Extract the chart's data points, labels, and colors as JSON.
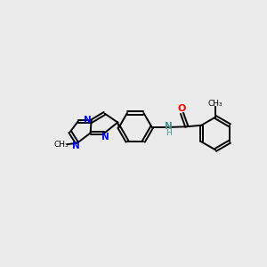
{
  "bg_color": "#ebebeb",
  "bond_color": "#000000",
  "N_color": "#0000ff",
  "O_color": "#ff0000",
  "NH_color": "#4a9090",
  "lw": 1.4,
  "fs": 7.5,
  "dbo": 0.055,
  "xlim": [
    0,
    10
  ],
  "ylim": [
    2,
    8
  ]
}
